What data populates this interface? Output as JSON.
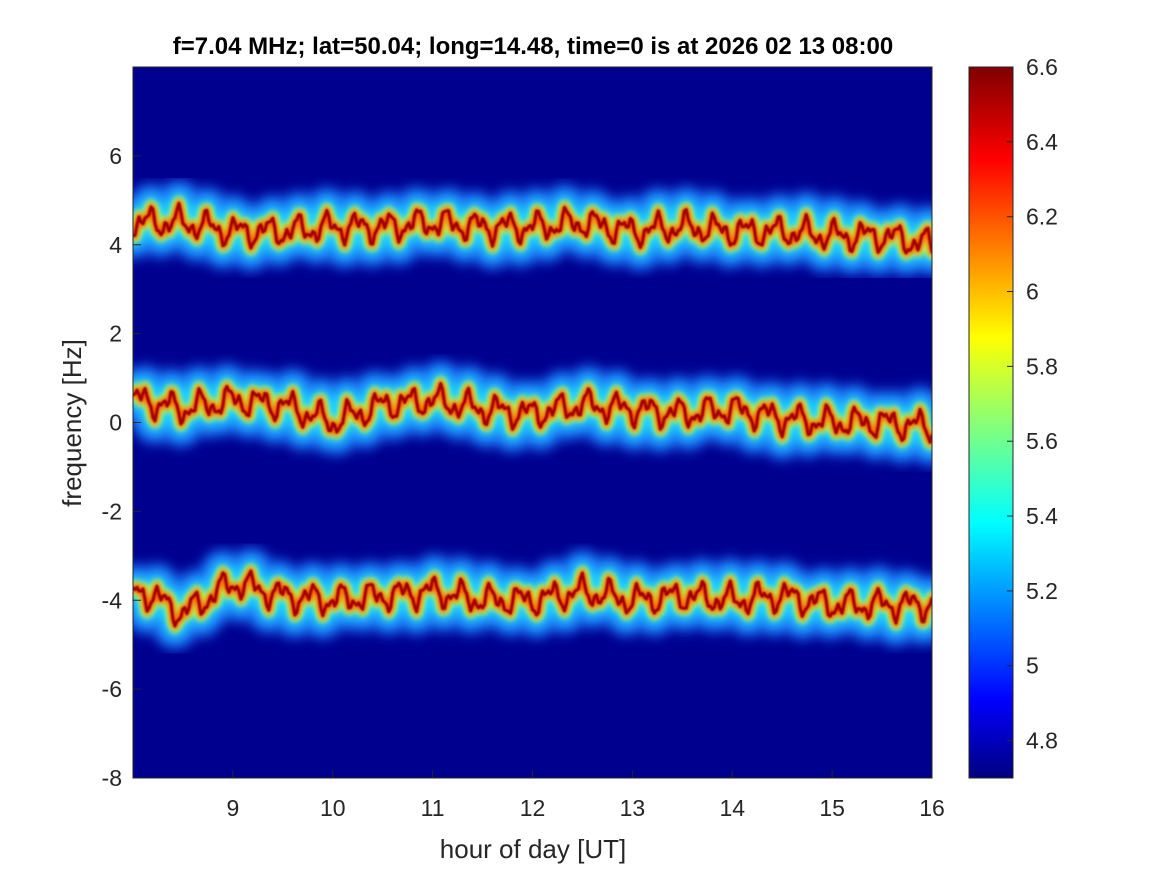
{
  "chart_data": {
    "type": "heatmap",
    "title": "f=7.04 MHz;  lat=50.04; long=14.48, time=0 is at 2026 02 13 08:00",
    "xlabel": "hour of day [UT]",
    "ylabel": "frequency [Hz]",
    "xlim": [
      8,
      16
    ],
    "ylim": [
      -8,
      8
    ],
    "xticks": [
      "9",
      "10",
      "11",
      "12",
      "13",
      "14",
      "15",
      "16"
    ],
    "yticks": [
      "-8",
      "-6",
      "-4",
      "-2",
      "0",
      "2",
      "4",
      "6"
    ],
    "colorbar": {
      "colormap": "jet",
      "clim": [
        4.7,
        6.6
      ],
      "ticks": [
        "4.8",
        "5",
        "5.2",
        "5.4",
        "5.6",
        "5.8",
        "6",
        "6.2",
        "6.4",
        "6.6"
      ]
    },
    "series": [
      {
        "approx_center_hz": 4.4,
        "x": [
          8.1,
          8.5,
          9.0,
          9.5,
          10.0,
          10.5,
          11.0,
          11.5,
          12.0,
          12.5,
          13.0,
          13.5,
          14.0,
          14.5,
          15.0,
          15.5,
          16.0
        ],
        "y": [
          4.5,
          4.5,
          4.3,
          4.3,
          4.4,
          4.4,
          4.5,
          4.4,
          4.4,
          4.5,
          4.3,
          4.4,
          4.3,
          4.3,
          4.2,
          4.2,
          4.0
        ]
      },
      {
        "approx_center_hz": 0.3,
        "x": [
          8.1,
          8.5,
          9.0,
          9.5,
          10.0,
          10.5,
          11.0,
          11.5,
          12.0,
          12.5,
          13.0,
          13.5,
          14.0,
          14.5,
          15.0,
          15.5,
          16.0
        ],
        "y": [
          0.5,
          0.3,
          0.5,
          0.4,
          0.0,
          0.4,
          0.5,
          0.3,
          0.2,
          0.4,
          0.3,
          0.2,
          0.3,
          0.1,
          0.0,
          0.0,
          -0.1
        ]
      },
      {
        "approx_center_hz": -3.9,
        "x": [
          8.1,
          8.5,
          9.0,
          9.5,
          10.0,
          10.5,
          11.0,
          11.5,
          12.0,
          12.5,
          13.0,
          13.5,
          14.0,
          14.5,
          15.0,
          15.5,
          16.0
        ],
        "y": [
          -3.8,
          -4.3,
          -3.6,
          -3.9,
          -4.0,
          -3.9,
          -3.8,
          -4.0,
          -4.0,
          -3.8,
          -4.0,
          -3.9,
          -4.0,
          -3.9,
          -4.1,
          -4.1,
          -4.1
        ]
      }
    ]
  }
}
